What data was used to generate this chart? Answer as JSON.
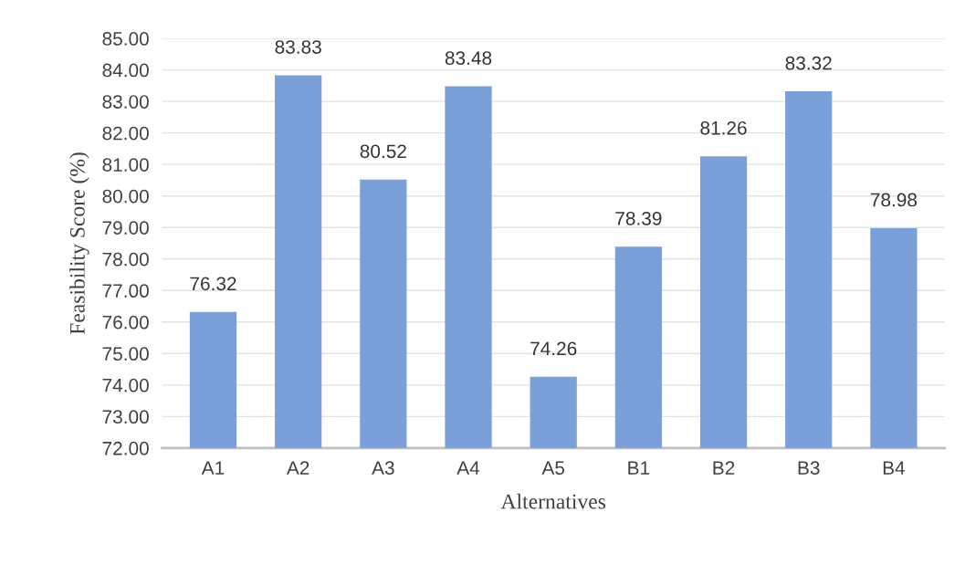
{
  "chart_data": {
    "type": "bar",
    "xlabel": "Alternatives",
    "ylabel": "Feasibility Score (%)",
    "categories": [
      "A1",
      "A2",
      "A3",
      "A4",
      "A5",
      "B1",
      "B2",
      "B3",
      "B4"
    ],
    "values": [
      76.32,
      83.83,
      80.52,
      83.48,
      74.26,
      78.39,
      81.26,
      83.32,
      78.98
    ],
    "color": "#7b9fd8",
    "ylim": [
      72,
      85
    ],
    "yticks": [
      {
        "value": 72,
        "label": "72.00"
      },
      {
        "value": 73,
        "label": "73.00"
      },
      {
        "value": 74,
        "label": "74.00"
      },
      {
        "value": 75,
        "label": "75.00"
      },
      {
        "value": 76,
        "label": "76.00"
      },
      {
        "value": 77,
        "label": "77.00"
      },
      {
        "value": 78,
        "label": "78.00"
      },
      {
        "value": 79,
        "label": "79.00"
      },
      {
        "value": 80,
        "label": "80.00"
      },
      {
        "value": 81,
        "label": "81.00"
      },
      {
        "value": 82,
        "label": "82.00"
      },
      {
        "value": 83,
        "label": "83.00"
      },
      {
        "value": 84,
        "label": "84.00"
      },
      {
        "value": 85,
        "label": "85.00"
      }
    ],
    "grid": "y",
    "data_labels": true
  }
}
